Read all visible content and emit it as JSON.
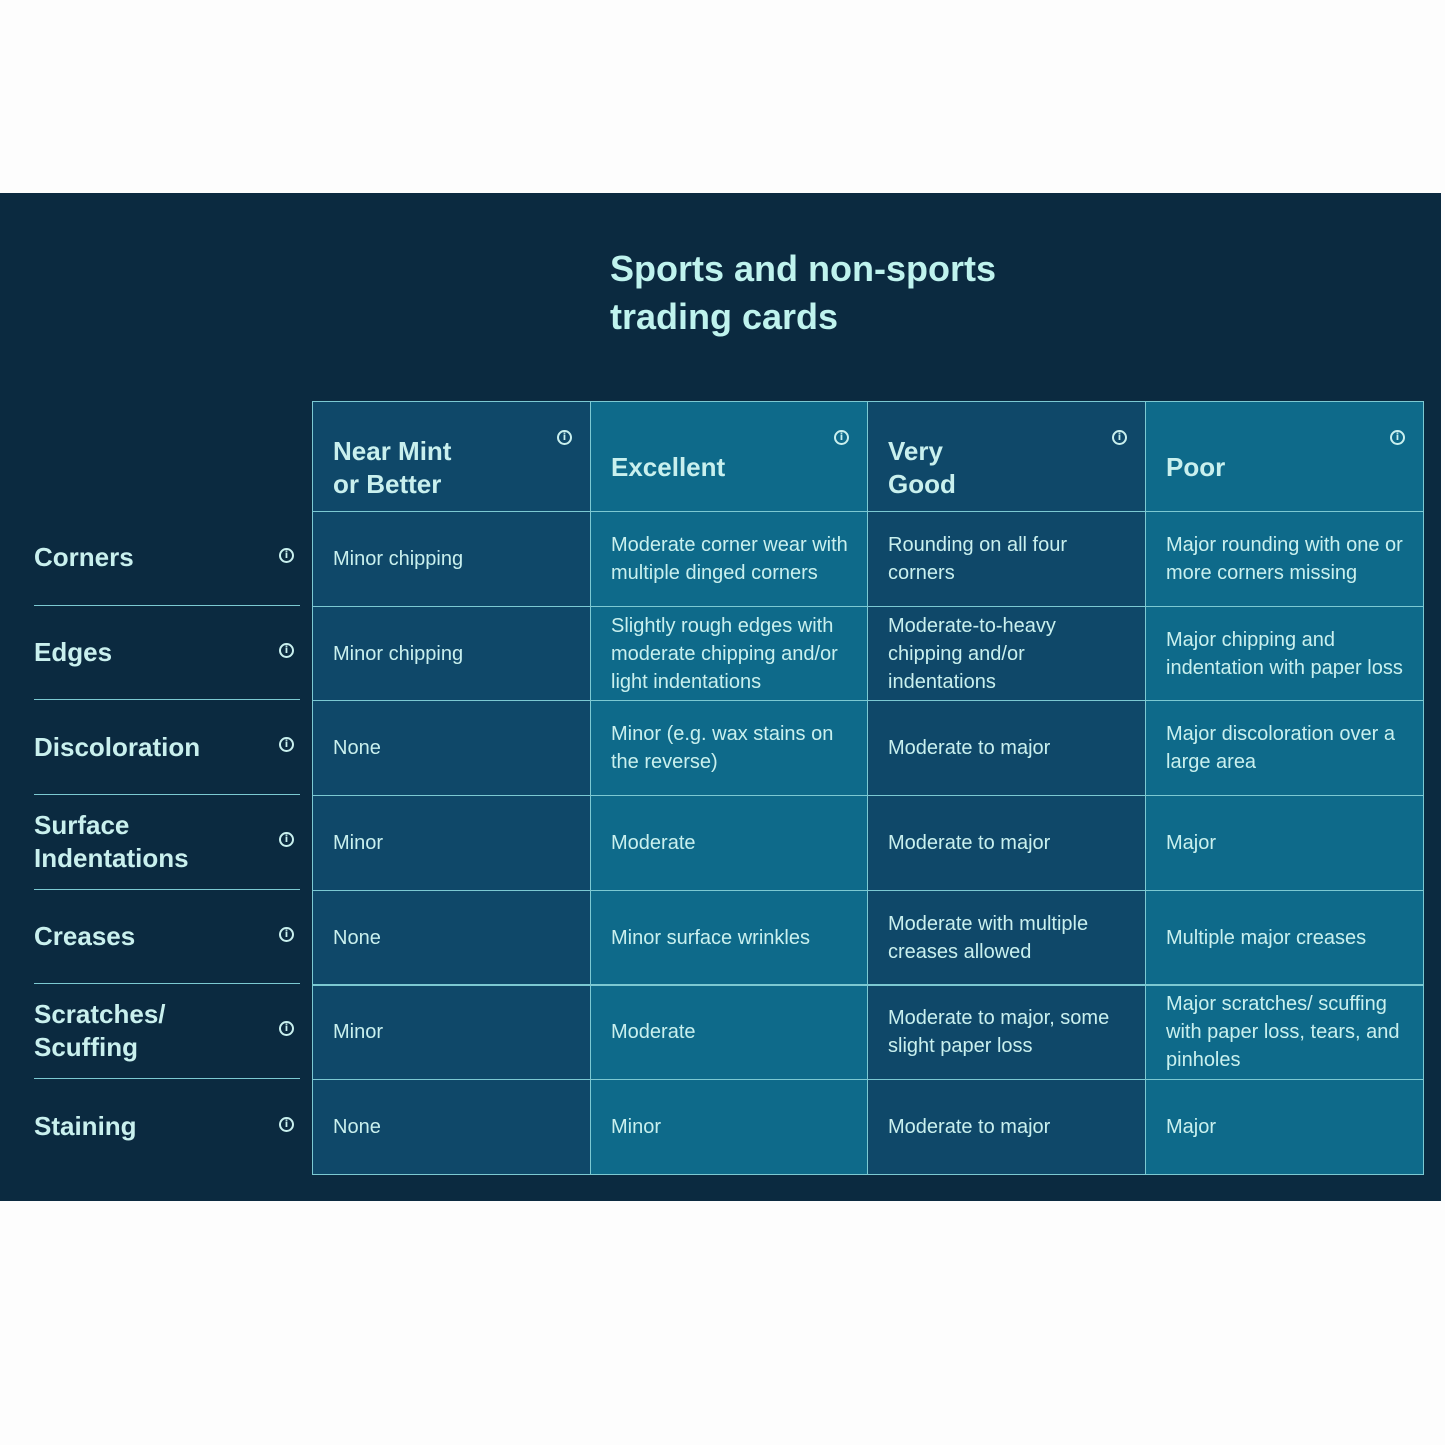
{
  "title": "Sports and non-sports\ntrading cards",
  "colors": {
    "panel": "#0b2a40",
    "column_dark": "#0f4869",
    "column_teal": "#0e6a8a",
    "border": "#7cc9d2",
    "text": "#c9f0ee"
  },
  "info_icon": "info-circle-icon",
  "columns": [
    "Near Mint\nor Better",
    "Excellent",
    "Very\nGood",
    "Poor"
  ],
  "rows": [
    {
      "label": "Corners",
      "cells": [
        "Minor chipping",
        "Moderate corner wear with multiple dinged corners",
        "Rounding on all four corners",
        "Major rounding with one or more corners missing"
      ]
    },
    {
      "label": "Edges",
      "cells": [
        "Minor chipping",
        "Slightly rough edges with moderate chipping and/or light indentations",
        "Moderate-to-heavy chipping and/or indentations",
        "Major chipping and indentation with paper loss"
      ]
    },
    {
      "label": "Discoloration",
      "cells": [
        "None",
        "Minor (e.g. wax stains on the reverse)",
        "Moderate to major",
        "Major discoloration over a large area"
      ]
    },
    {
      "label": "Surface\nIndentations",
      "cells": [
        "Minor",
        "Moderate",
        "Moderate to major",
        "Major"
      ]
    },
    {
      "label": "Creases",
      "cells": [
        "None",
        "Minor surface wrinkles",
        "Moderate with multiple creases allowed",
        "Multiple major creases"
      ]
    },
    {
      "label": "Scratches/\nScuffing",
      "cells": [
        "Minor",
        "Moderate",
        "Moderate to major, some slight paper loss",
        "Major scratches/ scuffing with paper loss, tears, and pinholes"
      ]
    },
    {
      "label": "Staining",
      "cells": [
        "None",
        "Minor",
        "Moderate to major",
        "Major"
      ]
    }
  ]
}
